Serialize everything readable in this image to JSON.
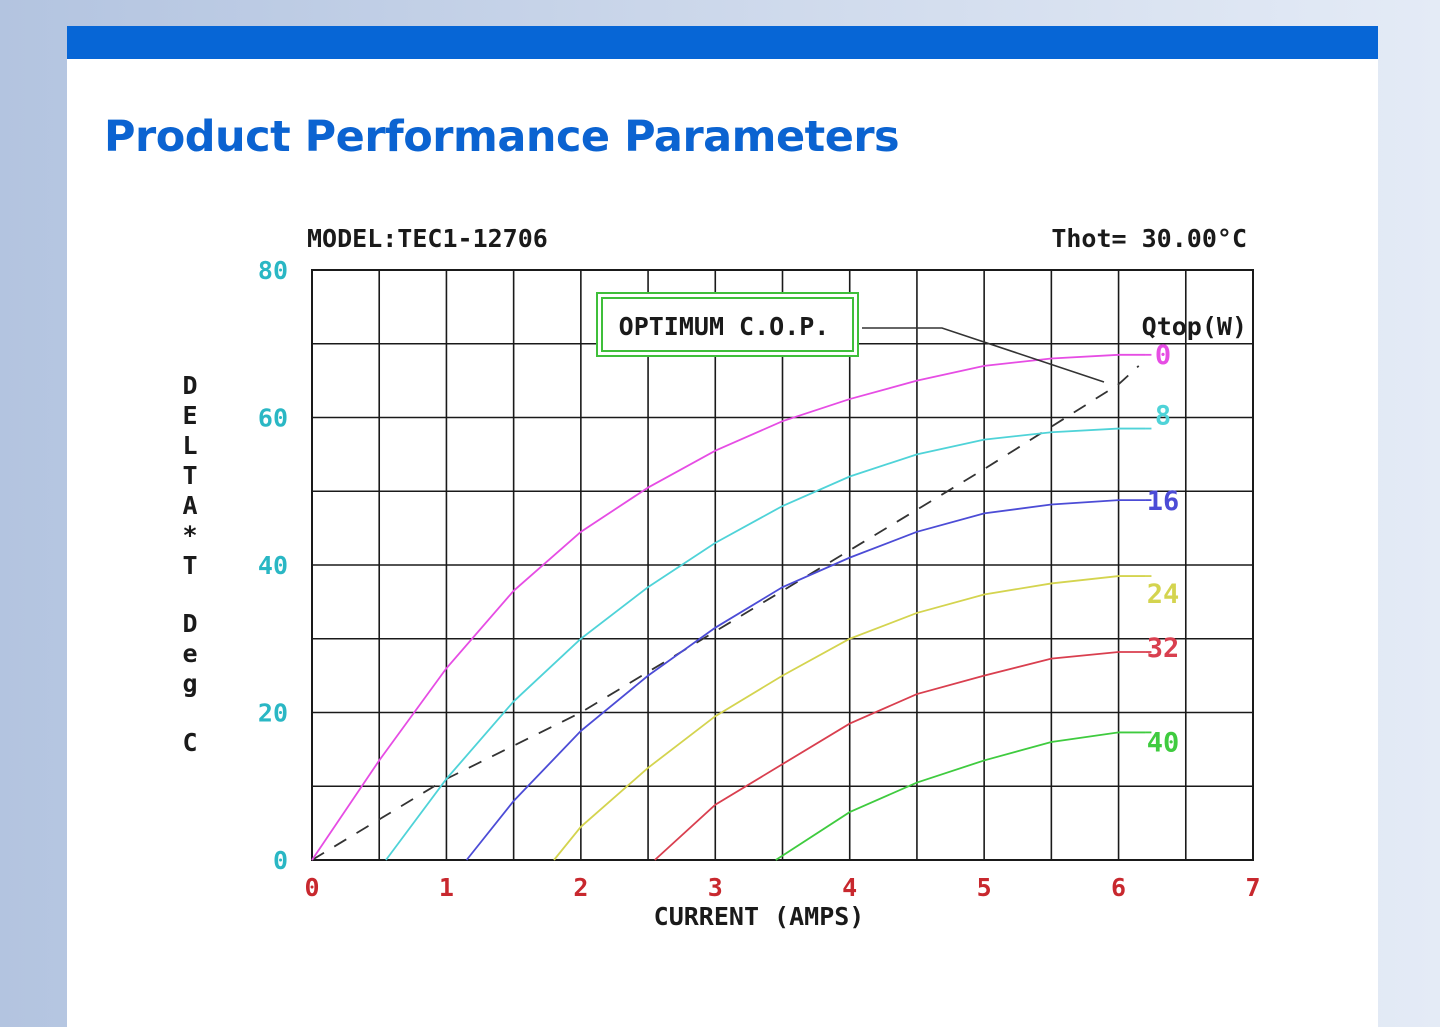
{
  "page": {
    "section_title": "Product Performance Parameters"
  },
  "chart_data": {
    "type": "line",
    "model_label": "MODEL:TEC1-12706",
    "thot_label": "Thot= 30.00°C",
    "xlabel": "CURRENT (AMPS)",
    "ylabel_letters": [
      "D",
      "E",
      "L",
      "T",
      "A",
      "*",
      "T",
      "D",
      "e",
      "g",
      "C"
    ],
    "xlim": [
      0,
      7
    ],
    "ylim": [
      0,
      80
    ],
    "x_ticks": [
      "0",
      "1",
      "2",
      "3",
      "4",
      "5",
      "6",
      "7"
    ],
    "y_ticks": [
      "0",
      "20",
      "40",
      "60",
      "80"
    ],
    "grid": true,
    "legend_title": "Qtop(W)",
    "annotation": "OPTIMUM C.O.P.",
    "colors": {
      "grid": "#1a1a1a",
      "x_tick_text": "#c8282e",
      "y_tick_text": "#2ab7c4",
      "annotation_box": "#3fbf3a",
      "cop_line": "#333333"
    },
    "series": [
      {
        "name": "0",
        "color": "#e64de4",
        "points": [
          [
            0,
            0
          ],
          [
            0.5,
            13.5
          ],
          [
            1,
            26
          ],
          [
            1.5,
            36.5
          ],
          [
            2,
            44.5
          ],
          [
            2.5,
            50.5
          ],
          [
            3,
            55.5
          ],
          [
            3.5,
            59.5
          ],
          [
            4,
            62.5
          ],
          [
            4.5,
            65
          ],
          [
            5,
            67
          ],
          [
            5.5,
            68
          ],
          [
            6,
            68.5
          ],
          [
            6.2,
            68.5
          ]
        ]
      },
      {
        "name": "8",
        "color": "#4fd3d8",
        "points": [
          [
            0.55,
            0
          ],
          [
            1,
            11
          ],
          [
            1.5,
            21.5
          ],
          [
            2,
            30
          ],
          [
            2.5,
            37
          ],
          [
            3,
            43
          ],
          [
            3.5,
            48
          ],
          [
            4,
            52
          ],
          [
            4.5,
            55
          ],
          [
            5,
            57
          ],
          [
            5.5,
            58
          ],
          [
            6,
            58.5
          ],
          [
            6.2,
            58.5
          ]
        ]
      },
      {
        "name": "16",
        "color": "#4c4cd6",
        "points": [
          [
            1.15,
            0
          ],
          [
            1.5,
            8
          ],
          [
            2,
            17.5
          ],
          [
            2.5,
            25
          ],
          [
            3,
            31.5
          ],
          [
            3.5,
            37
          ],
          [
            4,
            41
          ],
          [
            4.5,
            44.5
          ],
          [
            5,
            47
          ],
          [
            5.5,
            48.2
          ],
          [
            6,
            48.8
          ],
          [
            6.2,
            48.8
          ]
        ]
      },
      {
        "name": "24",
        "color": "#d4d44f",
        "points": [
          [
            1.8,
            0
          ],
          [
            2,
            4.5
          ],
          [
            2.5,
            12.5
          ],
          [
            3,
            19.5
          ],
          [
            3.5,
            25
          ],
          [
            4,
            30
          ],
          [
            4.5,
            33.5
          ],
          [
            5,
            36
          ],
          [
            5.5,
            37.5
          ],
          [
            6,
            38.5
          ],
          [
            6.2,
            38.5
          ]
        ]
      },
      {
        "name": "32",
        "color": "#d93f4f",
        "points": [
          [
            2.55,
            0
          ],
          [
            3,
            7.5
          ],
          [
            3.5,
            13
          ],
          [
            4,
            18.5
          ],
          [
            4.5,
            22.5
          ],
          [
            5,
            25
          ],
          [
            5.5,
            27.3
          ],
          [
            6,
            28.2
          ],
          [
            6.2,
            28.2
          ]
        ]
      },
      {
        "name": "40",
        "color": "#3fcb3f",
        "points": [
          [
            3.45,
            0
          ],
          [
            4,
            6.5
          ],
          [
            4.5,
            10.5
          ],
          [
            5,
            13.5
          ],
          [
            5.5,
            16
          ],
          [
            6,
            17.3
          ],
          [
            6.2,
            17.3
          ]
        ]
      }
    ],
    "cop_line": {
      "points": [
        [
          0,
          0
        ],
        [
          1,
          11
        ],
        [
          2,
          20
        ],
        [
          3,
          31
        ],
        [
          4,
          42
        ],
        [
          5,
          53
        ],
        [
          6,
          64.5
        ],
        [
          6.15,
          67
        ]
      ]
    }
  }
}
